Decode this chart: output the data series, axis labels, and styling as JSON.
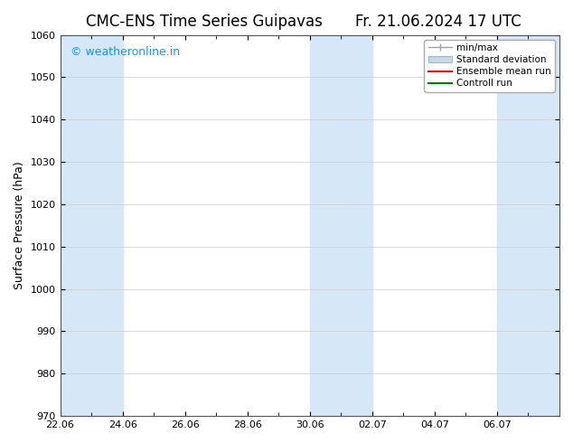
{
  "title_left": "CMC-ENS Time Series Guipavas",
  "title_right": "Fr. 21.06.2024 17 UTC",
  "ylabel": "Surface Pressure (hPa)",
  "ylim": [
    970,
    1060
  ],
  "yticks": [
    970,
    980,
    990,
    1000,
    1010,
    1020,
    1030,
    1040,
    1050,
    1060
  ],
  "xlim_start": 0,
  "xlim_end": 16,
  "xtick_labels": [
    "22.06",
    "24.06",
    "26.06",
    "28.06",
    "30.06",
    "02.07",
    "04.07",
    "06.07"
  ],
  "xtick_positions": [
    0,
    2,
    4,
    6,
    8,
    10,
    12,
    14
  ],
  "shaded_bands": [
    {
      "x_start": 0,
      "x_end": 2
    },
    {
      "x_start": 8,
      "x_end": 10
    },
    {
      "x_start": 14,
      "x_end": 16
    }
  ],
  "shaded_color": "#d6e8f7",
  "background_color": "#ffffff",
  "plot_bg_color": "#ffffff",
  "watermark_text": "© weatheronline.in",
  "watermark_color": "#1e90ff",
  "legend_items": [
    {
      "label": "min/max",
      "color": "#a0a0a0",
      "style": "errorbar"
    },
    {
      "label": "Standard deviation",
      "color": "#c8d8e8",
      "style": "box"
    },
    {
      "label": "Ensemble mean run",
      "color": "#ff0000",
      "style": "line"
    },
    {
      "label": "Controll run",
      "color": "#008000",
      "style": "line"
    }
  ],
  "title_fontsize": 12,
  "axis_fontsize": 9,
  "tick_fontsize": 8,
  "watermark_fontsize": 9
}
